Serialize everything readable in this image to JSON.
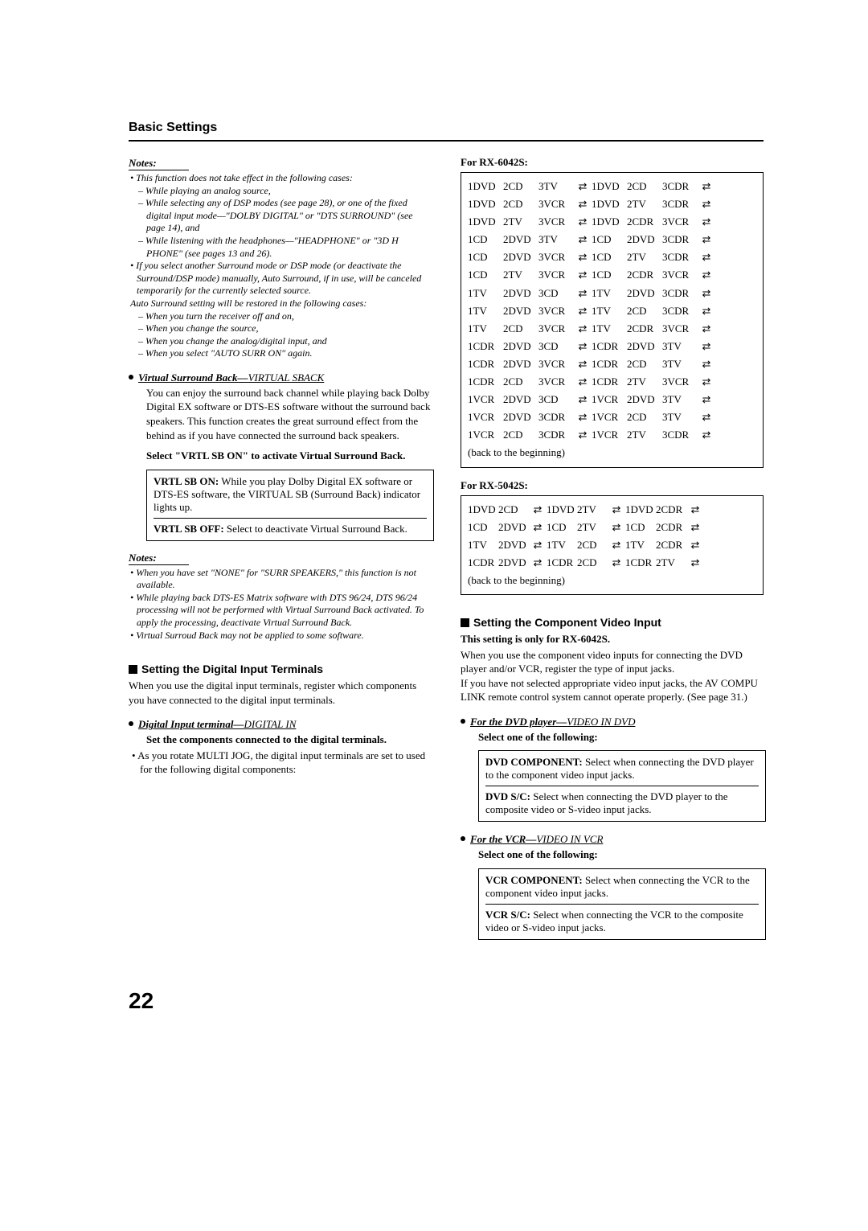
{
  "colors": {
    "text": "#000000",
    "bg": "#ffffff",
    "rule": "#000000"
  },
  "fonts": {
    "body": "Times New Roman",
    "heading": "Arial",
    "body_size": 13,
    "note_size": 12,
    "title_size": 16,
    "sub_size": 14,
    "pgnum_size": 28
  },
  "pageTitle": "Basic Settings",
  "pageNumber": "22",
  "left": {
    "notes1Header": "Notes:",
    "notes1": [
      {
        "t": "This function does not take effect in the following cases:",
        "lvl": 1
      },
      {
        "t": "While playing an analog source,",
        "lvl": 2
      },
      {
        "t": "While selecting any of DSP modes (see page 28), or one of the fixed digital input mode—\"DOLBY DIGITAL\" or \"DTS SURROUND\" (see page 14), and",
        "lvl": 2
      },
      {
        "t": "While listening with the headphones—\"HEADPHONE\" or \"3D H PHONE\" (see pages 13 and 26).",
        "lvl": 2
      },
      {
        "t": "If you select another Surround mode or DSP mode (or deactivate the Surround/DSP mode) manually, Auto Surround, if in use, will be canceled temporarily for the currently selected source.",
        "lvl": 1
      },
      {
        "t": "Auto Surround setting will be restored in the following cases:",
        "lvl": 1,
        "nobul": true
      },
      {
        "t": "When you turn the receiver off and on,",
        "lvl": 2
      },
      {
        "t": "When you change the source,",
        "lvl": 2
      },
      {
        "t": "When you change the analog/digital input, and",
        "lvl": 2
      },
      {
        "t": "When you select \"AUTO SURR ON\" again.",
        "lvl": 2
      }
    ],
    "vsbHead": "Virtual Surround Back—",
    "vsbHeadThin": "VIRTUAL SBACK",
    "vsbBody": "You can enjoy the surround back channel while playing back Dolby Digital EX software or DTS-ES software without the surround back speakers. This function creates the great surround effect from the behind as if you have connected the surround back speakers.",
    "vsbSelect": "Select \"VRTL SB ON\" to activate Virtual Surround Back.",
    "vsbBox": [
      {
        "label": "VRTL SB ON:",
        "text": " While you play Dolby Digital EX software or DTS-ES software, the VIRTUAL SB (Surround Back) indicator lights up."
      },
      {
        "label": "VRTL SB OFF:",
        "text": " Select to deactivate Virtual Surround Back."
      }
    ],
    "notes2Header": "Notes:",
    "notes2": [
      {
        "t": "When you have set \"NONE\" for \"SURR SPEAKERS,\" this function is not available.",
        "lvl": 1
      },
      {
        "t": "While playing back DTS-ES Matrix software with DTS 96/24, DTS 96/24 processing will not be performed with Virtual Surround Back activated. To apply the processing, deactivate Virtual Surround Back.",
        "lvl": 1
      },
      {
        "t": "Virtual Surroud Back may not be applied to some software.",
        "lvl": 1
      }
    ],
    "digHead": "Setting the Digital Input Terminals",
    "digBody": "When you use the digital input terminals, register which components you have connected to the digital input terminals.",
    "digSubHead": "Digital Input terminal—",
    "digSubHeadThin": "DIGITAL IN",
    "digSet": "Set the components connected to the digital terminals.",
    "digBullet": "As you rotate MULTI JOG, the digital input terminals are set to used for the following digital components:"
  },
  "right": {
    "model1": "For RX-6042S:",
    "table1Rows": [
      [
        "1DVD",
        "2CD",
        "3TV",
        "",
        "1DVD",
        "2CD",
        "3CDR",
        ""
      ],
      [
        "1DVD",
        "2CD",
        "3VCR",
        "",
        "1DVD",
        "2TV",
        "3CDR",
        ""
      ],
      [
        "1DVD",
        "2TV",
        "3VCR",
        "",
        "1DVD",
        "2CDR",
        "3VCR",
        ""
      ],
      [
        "1CD",
        "2DVD",
        "3TV",
        "",
        "1CD",
        "2DVD",
        "3CDR",
        ""
      ],
      [
        "1CD",
        "2DVD",
        "3VCR",
        "",
        "1CD",
        "2TV",
        "3CDR",
        ""
      ],
      [
        "1CD",
        "2TV",
        "3VCR",
        "",
        "1CD",
        "2CDR",
        "3VCR",
        ""
      ],
      [
        "1TV",
        "2DVD",
        "3CD",
        "",
        "1TV",
        "2DVD",
        "3CDR",
        ""
      ],
      [
        "1TV",
        "2DVD",
        "3VCR",
        "",
        "1TV",
        "2CD",
        "3CDR",
        ""
      ],
      [
        "1TV",
        "2CD",
        "3VCR",
        "",
        "1TV",
        "2CDR",
        "3VCR",
        ""
      ],
      [
        "1CDR",
        "2DVD",
        "3CD",
        "",
        "1CDR",
        "2DVD",
        "3TV",
        ""
      ],
      [
        "1CDR",
        "2DVD",
        "3VCR",
        "",
        "1CDR",
        "2CD",
        "3TV",
        ""
      ],
      [
        "1CDR",
        "2CD",
        "3VCR",
        "",
        "1CDR",
        "2TV",
        "3VCR",
        ""
      ],
      [
        "1VCR",
        "2DVD",
        "3CD",
        "",
        "1VCR",
        "2DVD",
        "3TV",
        ""
      ],
      [
        "1VCR",
        "2DVD",
        "3CDR",
        "",
        "1VCR",
        "2CD",
        "3TV",
        ""
      ],
      [
        "1VCR",
        "2CD",
        "3CDR",
        "",
        "1VCR",
        "2TV",
        "3CDR",
        ""
      ]
    ],
    "table1Footer": "(back to the beginning)",
    "model2": "For RX-5042S:",
    "table2Rows": [
      [
        "1DVD",
        "2CD",
        "",
        "1DVD",
        "2TV",
        "",
        "1DVD",
        "2CDR",
        ""
      ],
      [
        "1CD",
        "2DVD",
        "",
        "1CD",
        "2TV",
        "",
        "1CD",
        "2CDR",
        ""
      ],
      [
        "1TV",
        "2DVD",
        "",
        "1TV",
        "2CD",
        "",
        "1TV",
        "2CDR",
        ""
      ],
      [
        "1CDR",
        "2DVD",
        "",
        "1CDR",
        "2CD",
        "",
        "1CDR",
        "2TV",
        ""
      ]
    ],
    "table2Footer": "(back to the beginning)",
    "compHead": "Setting the Component Video Input",
    "compOnly": "This setting is only for RX-6042S.",
    "compBody": "When you use the component video inputs for connecting the DVD player and/or VCR, register the type of input jacks.\nIf you have not selected appropriate video input jacks, the AV COMPU LINK remote control system cannot operate properly. (See page 31.)",
    "dvdHead": "For the DVD player—",
    "dvdHeadThin": "VIDEO IN DVD",
    "selectOne1": "Select one of the following:",
    "dvdBox": [
      {
        "label": "DVD COMPONENT:",
        "text": " Select when connecting the DVD player to the component video input jacks."
      },
      {
        "label": "DVD S/C:",
        "text": " Select when connecting the DVD player to the composite video or S-video input jacks."
      }
    ],
    "vcrHead": "For the VCR—",
    "vcrHeadThin": "VIDEO IN VCR",
    "selectOne2": "Select one of the following:",
    "vcrBox": [
      {
        "label": "VCR COMPONENT:",
        "text": " Select when connecting the VCR to the component video input jacks."
      },
      {
        "label": "VCR S/C:",
        "text": " Select when connecting the VCR to the composite video or S-video input jacks."
      }
    ]
  },
  "arrowGlyph": "⇄"
}
